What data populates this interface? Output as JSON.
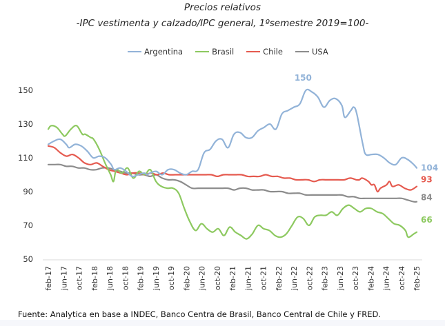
{
  "chart_data": {
    "type": "line",
    "title": "Precios relativos",
    "subtitle": "-IPC vestimenta y calzado/IPC general, 1ºsemestre 2019=100-",
    "xlabel": "",
    "ylabel": "",
    "ylim": [
      50,
      150
    ],
    "yticks": [
      50,
      70,
      90,
      110,
      130,
      150
    ],
    "grid": false,
    "legend_position": "top",
    "x_tick_labels": [
      "feb-17",
      "jun-17",
      "oct-17",
      "feb-18",
      "jun-18",
      "oct-18",
      "feb-19",
      "jun-19",
      "oct-19",
      "feb-20",
      "jun-20",
      "oct-20",
      "feb-21",
      "jun-21",
      "oct-21",
      "feb-22",
      "jun-22",
      "oct-22",
      "feb-23",
      "jun-23",
      "oct-23",
      "feb-24",
      "jun-24",
      "oct-24",
      "feb-25"
    ],
    "x_months_total": 96,
    "series": [
      {
        "name": "Argentina",
        "color": "#92b3d8",
        "end_label": "104",
        "peak_label": "150",
        "peak_month": 68,
        "points": [
          [
            0,
            118
          ],
          [
            2,
            120
          ],
          [
            4,
            121
          ],
          [
            6,
            118
          ],
          [
            7,
            116
          ],
          [
            9,
            118
          ],
          [
            11,
            117
          ],
          [
            13,
            114
          ],
          [
            15,
            110
          ],
          [
            17,
            111
          ],
          [
            19,
            110
          ],
          [
            21,
            106
          ],
          [
            22,
            103
          ],
          [
            24,
            104
          ],
          [
            26,
            102
          ],
          [
            28,
            99
          ],
          [
            30,
            100
          ],
          [
            32,
            101
          ],
          [
            33,
            100
          ],
          [
            34,
            101
          ],
          [
            36,
            102
          ],
          [
            38,
            100
          ],
          [
            40,
            103
          ],
          [
            42,
            103
          ],
          [
            44,
            101
          ],
          [
            46,
            100
          ],
          [
            48,
            102
          ],
          [
            50,
            103
          ],
          [
            52,
            113
          ],
          [
            54,
            115
          ],
          [
            56,
            120
          ],
          [
            58,
            121
          ],
          [
            60,
            116
          ],
          [
            62,
            124
          ],
          [
            64,
            125
          ],
          [
            66,
            122
          ],
          [
            68,
            122
          ],
          [
            70,
            126
          ],
          [
            72,
            128
          ],
          [
            74,
            130
          ],
          [
            76,
            127
          ],
          [
            78,
            136
          ],
          [
            80,
            138
          ],
          [
            82,
            140
          ],
          [
            84,
            142
          ],
          [
            86,
            150
          ],
          [
            88,
            149
          ],
          [
            90,
            146
          ],
          [
            92,
            140
          ],
          [
            94,
            144
          ],
          [
            96,
            145
          ],
          [
            98,
            141
          ],
          [
            99,
            134
          ],
          [
            101,
            138
          ],
          [
            102,
            140
          ],
          [
            103,
            136
          ],
          [
            105,
            118
          ],
          [
            106,
            112
          ],
          [
            108,
            112
          ],
          [
            110,
            112
          ],
          [
            112,
            110
          ],
          [
            114,
            107
          ],
          [
            116,
            106
          ],
          [
            118,
            110
          ],
          [
            120,
            109
          ],
          [
            122,
            106
          ],
          [
            123,
            104
          ]
        ]
      },
      {
        "name": "Brasil",
        "color": "#8dc960",
        "end_label": "66",
        "points": [
          [
            0,
            127
          ],
          [
            1,
            129
          ],
          [
            3,
            128
          ],
          [
            5,
            124
          ],
          [
            6,
            123
          ],
          [
            8,
            127
          ],
          [
            10,
            129
          ],
          [
            12,
            124
          ],
          [
            13,
            124
          ],
          [
            15,
            122
          ],
          [
            16,
            121
          ],
          [
            18,
            115
          ],
          [
            20,
            107
          ],
          [
            22,
            100
          ],
          [
            23,
            96
          ],
          [
            24,
            103
          ],
          [
            26,
            101
          ],
          [
            28,
            104
          ],
          [
            30,
            98
          ],
          [
            32,
            102
          ],
          [
            34,
            100
          ],
          [
            36,
            103
          ],
          [
            38,
            96
          ],
          [
            40,
            93
          ],
          [
            42,
            92
          ],
          [
            44,
            92
          ],
          [
            46,
            89
          ],
          [
            48,
            80
          ],
          [
            50,
            72
          ],
          [
            52,
            67
          ],
          [
            54,
            71
          ],
          [
            56,
            68
          ],
          [
            58,
            66
          ],
          [
            60,
            68
          ],
          [
            62,
            64
          ],
          [
            64,
            69
          ],
          [
            66,
            66
          ],
          [
            68,
            64
          ],
          [
            70,
            62
          ],
          [
            72,
            65
          ],
          [
            74,
            70
          ],
          [
            76,
            68
          ],
          [
            78,
            67
          ],
          [
            80,
            64
          ],
          [
            82,
            63
          ],
          [
            84,
            65
          ],
          [
            86,
            70
          ],
          [
            88,
            75
          ],
          [
            90,
            74
          ],
          [
            92,
            70
          ],
          [
            94,
            75
          ],
          [
            96,
            76
          ],
          [
            98,
            76
          ],
          [
            100,
            78
          ],
          [
            102,
            76
          ],
          [
            104,
            80
          ],
          [
            106,
            82
          ],
          [
            108,
            80
          ],
          [
            110,
            78
          ],
          [
            112,
            80
          ],
          [
            114,
            80
          ],
          [
            116,
            78
          ],
          [
            118,
            77
          ],
          [
            120,
            74
          ],
          [
            122,
            71
          ],
          [
            124,
            70
          ],
          [
            126,
            67
          ],
          [
            127,
            63
          ],
          [
            129,
            65
          ],
          [
            130,
            66
          ]
        ]
      },
      {
        "name": "Chile",
        "color": "#e55a4f",
        "end_label": "93",
        "points": [
          [
            0,
            117
          ],
          [
            2,
            116
          ],
          [
            4,
            113
          ],
          [
            6,
            111
          ],
          [
            8,
            112
          ],
          [
            10,
            110
          ],
          [
            12,
            107
          ],
          [
            14,
            106
          ],
          [
            16,
            107
          ],
          [
            18,
            105
          ],
          [
            20,
            103
          ],
          [
            22,
            102
          ],
          [
            24,
            101
          ],
          [
            26,
            100
          ],
          [
            28,
            101
          ],
          [
            30,
            101
          ],
          [
            32,
            100
          ],
          [
            34,
            101
          ],
          [
            36,
            100
          ],
          [
            38,
            101
          ],
          [
            40,
            100
          ],
          [
            42,
            100
          ],
          [
            44,
            100
          ],
          [
            46,
            100
          ],
          [
            48,
            100
          ],
          [
            50,
            100
          ],
          [
            52,
            100
          ],
          [
            54,
            100
          ],
          [
            56,
            99
          ],
          [
            58,
            100
          ],
          [
            60,
            100
          ],
          [
            62,
            100
          ],
          [
            64,
            100
          ],
          [
            66,
            99
          ],
          [
            68,
            99
          ],
          [
            70,
            99
          ],
          [
            72,
            100
          ],
          [
            74,
            99
          ],
          [
            76,
            99
          ],
          [
            78,
            98
          ],
          [
            80,
            98
          ],
          [
            82,
            97
          ],
          [
            84,
            97
          ],
          [
            86,
            97
          ],
          [
            88,
            96
          ],
          [
            90,
            97
          ],
          [
            92,
            97
          ],
          [
            94,
            97
          ],
          [
            96,
            97
          ],
          [
            98,
            97
          ],
          [
            100,
            98
          ],
          [
            102,
            97
          ],
          [
            103,
            97
          ],
          [
            104,
            98
          ],
          [
            106,
            96
          ],
          [
            107,
            94
          ],
          [
            108,
            94
          ],
          [
            109,
            90
          ],
          [
            110,
            92
          ],
          [
            112,
            94
          ],
          [
            113,
            96
          ],
          [
            114,
            93
          ],
          [
            116,
            94
          ],
          [
            118,
            92
          ],
          [
            120,
            91
          ],
          [
            122,
            93
          ]
        ]
      },
      {
        "name": "USA",
        "color": "#8c8c8c",
        "end_label": "84",
        "points": [
          [
            0,
            106
          ],
          [
            2,
            106
          ],
          [
            4,
            106
          ],
          [
            6,
            105
          ],
          [
            8,
            105
          ],
          [
            10,
            104
          ],
          [
            12,
            104
          ],
          [
            14,
            103
          ],
          [
            16,
            103
          ],
          [
            18,
            104
          ],
          [
            20,
            104
          ],
          [
            22,
            103
          ],
          [
            24,
            102
          ],
          [
            26,
            101
          ],
          [
            28,
            101
          ],
          [
            30,
            100
          ],
          [
            32,
            100
          ],
          [
            34,
            99
          ],
          [
            36,
            100
          ],
          [
            38,
            98
          ],
          [
            40,
            97
          ],
          [
            42,
            97
          ],
          [
            44,
            96
          ],
          [
            46,
            94
          ],
          [
            48,
            92
          ],
          [
            50,
            92
          ],
          [
            52,
            92
          ],
          [
            54,
            92
          ],
          [
            56,
            92
          ],
          [
            58,
            92
          ],
          [
            60,
            92
          ],
          [
            62,
            91
          ],
          [
            64,
            92
          ],
          [
            66,
            92
          ],
          [
            68,
            91
          ],
          [
            70,
            91
          ],
          [
            72,
            91
          ],
          [
            74,
            90
          ],
          [
            76,
            90
          ],
          [
            78,
            90
          ],
          [
            80,
            89
          ],
          [
            82,
            89
          ],
          [
            84,
            89
          ],
          [
            86,
            88
          ],
          [
            88,
            88
          ],
          [
            90,
            88
          ],
          [
            92,
            88
          ],
          [
            94,
            88
          ],
          [
            96,
            88
          ],
          [
            98,
            88
          ],
          [
            100,
            87
          ],
          [
            102,
            87
          ],
          [
            104,
            86
          ],
          [
            106,
            86
          ],
          [
            108,
            86
          ],
          [
            110,
            86
          ],
          [
            112,
            86
          ],
          [
            114,
            86
          ],
          [
            116,
            86
          ],
          [
            118,
            86
          ],
          [
            120,
            85
          ],
          [
            122,
            84
          ],
          [
            123,
            84
          ]
        ]
      }
    ]
  },
  "footer": {
    "source": "Fuente: Analytica en base a INDEC, Banco Centra de Brasil, Banco Central de Chile y FRED."
  }
}
